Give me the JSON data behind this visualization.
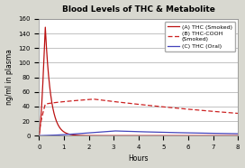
{
  "title": "Blood Levels of THC & Metabolite",
  "xlabel": "Hours",
  "ylabel": "ng/ml in plasma",
  "xlim": [
    0,
    8
  ],
  "ylim": [
    0,
    160
  ],
  "yticks": [
    0,
    20,
    40,
    60,
    80,
    100,
    120,
    140,
    160
  ],
  "xticks": [
    0,
    1,
    2,
    3,
    4,
    5,
    6,
    7,
    8
  ],
  "legend": [
    "(A) THC (Smoked)",
    "(B) THC-COOH\n(Smoked)",
    "(C) THC (Oral)"
  ],
  "bg_color": "#d8d8d0",
  "plot_bg": "#ffffff",
  "line_color_a": "#bb1111",
  "line_color_b": "#cc2222",
  "line_color_c": "#4444bb",
  "title_fontsize": 6.5,
  "label_fontsize": 5.5,
  "tick_fontsize": 5,
  "legend_fontsize": 4.5
}
